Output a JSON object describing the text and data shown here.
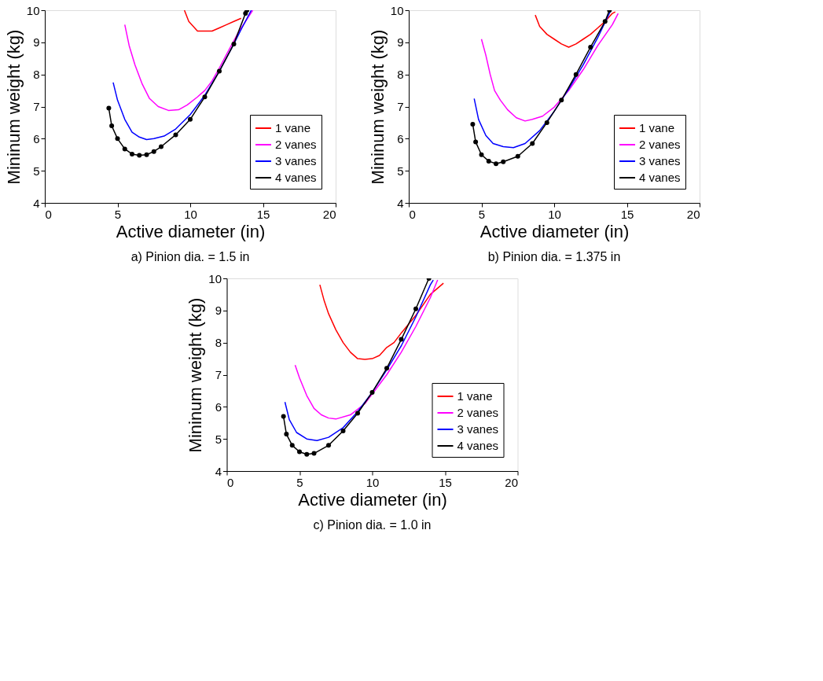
{
  "chart_data": [
    {
      "type": "line",
      "title": "a) Pinion dia. = 1.5 in",
      "xlabel": "Active diameter (in)",
      "ylabel": "Mininum weight (kg)",
      "xlim": [
        0,
        20
      ],
      "ylim": [
        4,
        10
      ],
      "xticks": [
        0,
        5,
        10,
        15,
        20
      ],
      "yticks": [
        4,
        5,
        6,
        7,
        8,
        9,
        10
      ],
      "grid": false,
      "legend": "bottom right",
      "series": [
        {
          "name": "1 vane",
          "color": "#ff0000",
          "x": [
            9.6,
            9.9,
            10.5,
            11,
            11.5,
            12,
            12.5,
            13,
            13.5
          ],
          "values": [
            10,
            9.65,
            9.35,
            9.35,
            9.35,
            9.45,
            9.55,
            9.65,
            9.75
          ]
        },
        {
          "name": "2 vanes",
          "color": "#ff00ff",
          "x": [
            5.5,
            5.8,
            6.2,
            6.7,
            7.2,
            7.8,
            8.5,
            9.2,
            9.8,
            10.5,
            11.0,
            11.5,
            12,
            12.7,
            13.3,
            14.3
          ],
          "values": [
            9.55,
            8.9,
            8.3,
            7.7,
            7.25,
            7.0,
            6.88,
            6.9,
            7.05,
            7.3,
            7.5,
            7.8,
            8.2,
            8.8,
            9.3,
            10.0
          ]
        },
        {
          "name": "3 vanes",
          "color": "#0000ff",
          "x": [
            4.7,
            5.0,
            5.5,
            6.0,
            6.5,
            7.0,
            7.5,
            8.2,
            9,
            10,
            11,
            12,
            13,
            13.5,
            14.2
          ],
          "values": [
            7.75,
            7.2,
            6.6,
            6.2,
            6.05,
            5.97,
            6.0,
            6.08,
            6.3,
            6.75,
            7.35,
            8.1,
            8.95,
            9.4,
            10.0
          ]
        },
        {
          "name": "4 vanes",
          "color": "#000000",
          "marker": "circle",
          "x": [
            4.4,
            4.6,
            5,
            5.5,
            6,
            6.5,
            7,
            7.5,
            8,
            9,
            10,
            11,
            12,
            13,
            13.8,
            13.9
          ],
          "values": [
            6.95,
            6.4,
            6.0,
            5.68,
            5.52,
            5.48,
            5.5,
            5.6,
            5.75,
            6.12,
            6.6,
            7.3,
            8.1,
            8.95,
            9.9,
            10.0
          ]
        }
      ]
    },
    {
      "type": "line",
      "title": "b) Pinion dia. = 1.375 in",
      "xlabel": "Active diameter (in)",
      "ylabel": "Mininum weight (kg)",
      "xlim": [
        0,
        20
      ],
      "ylim": [
        4,
        10
      ],
      "xticks": [
        0,
        5,
        10,
        15,
        20
      ],
      "yticks": [
        4,
        5,
        6,
        7,
        8,
        9,
        10
      ],
      "grid": false,
      "legend": "bottom right",
      "series": [
        {
          "name": "1 vane",
          "color": "#ff0000",
          "x": [
            8.7,
            9.0,
            9.5,
            10,
            10.5,
            11.0,
            11.5,
            12,
            12.5,
            13,
            13.5,
            14.0,
            14.2
          ],
          "values": [
            9.85,
            9.5,
            9.25,
            9.1,
            8.95,
            8.85,
            8.95,
            9.1,
            9.25,
            9.45,
            9.65,
            9.9,
            9.95
          ]
        },
        {
          "name": "2 vanes",
          "color": "#ff00ff",
          "x": [
            5.0,
            5.3,
            5.6,
            5.9,
            6.3,
            6.8,
            7.4,
            8.0,
            8.5,
            9.2,
            10,
            11,
            12,
            13,
            14,
            14.4
          ],
          "values": [
            9.1,
            8.6,
            8.0,
            7.5,
            7.2,
            6.9,
            6.65,
            6.55,
            6.6,
            6.7,
            6.98,
            7.5,
            8.15,
            8.9,
            9.55,
            9.9
          ]
        },
        {
          "name": "3 vanes",
          "color": "#0000ff",
          "x": [
            4.5,
            4.8,
            5.3,
            5.8,
            6.5,
            7.2,
            8,
            9,
            10,
            11,
            12,
            13,
            13.9
          ],
          "values": [
            7.25,
            6.6,
            6.1,
            5.85,
            5.75,
            5.72,
            5.85,
            6.25,
            6.85,
            7.55,
            8.3,
            9.15,
            10.0
          ]
        },
        {
          "name": "4 vanes",
          "color": "#000000",
          "marker": "circle",
          "x": [
            4.4,
            4.6,
            5,
            5.5,
            6,
            6.5,
            7.5,
            8.5,
            9.5,
            10.5,
            11.5,
            12.5,
            13.5,
            13.8
          ],
          "values": [
            6.45,
            5.9,
            5.5,
            5.3,
            5.22,
            5.28,
            5.45,
            5.85,
            6.5,
            7.2,
            8.0,
            8.85,
            9.65,
            10.0
          ]
        }
      ]
    },
    {
      "type": "line",
      "title": "c) Pinion dia. = 1.0 in",
      "xlabel": "Active diameter (in)",
      "ylabel": "Mininum weight (kg)",
      "xlim": [
        0,
        20
      ],
      "ylim": [
        4,
        10
      ],
      "xticks": [
        0,
        5,
        10,
        15,
        20
      ],
      "yticks": [
        4,
        5,
        6,
        7,
        8,
        9,
        10
      ],
      "grid": false,
      "legend": "bottom right",
      "series": [
        {
          "name": "1 vane",
          "color": "#ff0000",
          "x": [
            6.4,
            6.7,
            7.0,
            7.5,
            8.0,
            8.5,
            9.0,
            9.5,
            10,
            10.5,
            11,
            11.5,
            12,
            13,
            14,
            14.9
          ],
          "values": [
            9.8,
            9.3,
            8.9,
            8.4,
            8.0,
            7.7,
            7.5,
            7.48,
            7.5,
            7.6,
            7.85,
            8.0,
            8.3,
            8.85,
            9.5,
            9.85
          ]
        },
        {
          "name": "2 vanes",
          "color": "#ff00ff",
          "x": [
            4.7,
            5.0,
            5.5,
            6,
            6.5,
            7,
            7.5,
            8.5,
            9.5,
            10,
            11,
            12,
            13,
            14,
            14.5
          ],
          "values": [
            7.3,
            6.9,
            6.35,
            5.95,
            5.75,
            5.65,
            5.62,
            5.75,
            6.1,
            6.4,
            7.0,
            7.7,
            8.5,
            9.4,
            9.95
          ]
        },
        {
          "name": "3 vanes",
          "color": "#0000ff",
          "x": [
            4.0,
            4.3,
            4.8,
            5.5,
            6.2,
            7,
            8,
            9,
            10,
            11,
            12,
            13,
            14,
            14.2
          ],
          "values": [
            6.15,
            5.6,
            5.2,
            5.0,
            4.95,
            5.05,
            5.35,
            5.85,
            6.45,
            7.15,
            7.9,
            8.8,
            9.8,
            9.95
          ]
        },
        {
          "name": "4 vanes",
          "color": "#000000",
          "marker": "circle",
          "x": [
            3.9,
            4.1,
            4.5,
            5,
            5.5,
            6,
            7,
            8,
            9,
            10,
            11,
            12,
            13,
            13.9
          ],
          "values": [
            5.7,
            5.15,
            4.8,
            4.6,
            4.52,
            4.55,
            4.8,
            5.25,
            5.8,
            6.45,
            7.2,
            8.1,
            9.05,
            10.0
          ]
        }
      ]
    }
  ]
}
